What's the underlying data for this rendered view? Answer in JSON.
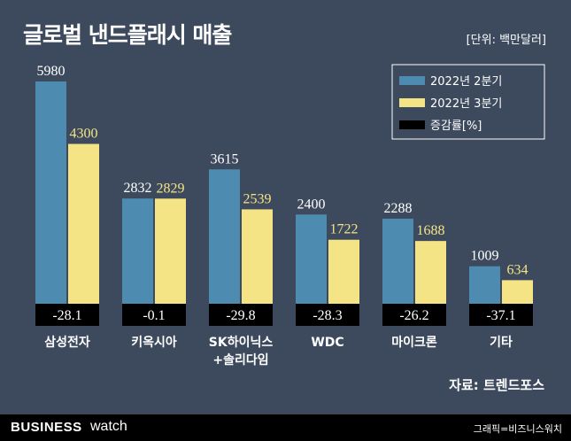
{
  "header": {
    "title": "글로벌 낸드플래시 매출",
    "unit": "[단위: 백만달러]"
  },
  "chart_data": {
    "type": "bar",
    "title": "글로벌 낸드플래시 매출",
    "unit": "[단위: 백만달러]",
    "categories": [
      [
        "삼성전자"
      ],
      [
        "키옥시아"
      ],
      [
        "SK하이닉스",
        "+솔리다임"
      ],
      [
        "WDC"
      ],
      [
        "마이크론"
      ],
      [
        "기타"
      ]
    ],
    "series": [
      {
        "name": "2022년 2분기",
        "values": [
          5980,
          2832,
          3615,
          2400,
          2288,
          1009
        ]
      },
      {
        "name": "2022년 3분기",
        "values": [
          4300,
          2829,
          2539,
          1722,
          1688,
          634
        ]
      }
    ],
    "change": {
      "name": "증감률[%]",
      "labels": [
        "-28.1",
        "-0.1",
        "-29.8",
        "-28.3",
        "-26.2",
        "-37.1"
      ]
    },
    "ylim": [
      0,
      6000
    ],
    "legend": "top-right",
    "colors": {
      "q2": "#4d8bb0",
      "q3": "#f5e485",
      "change": "#000000",
      "q2_label": "#ffffff",
      "q3_label": "#f5e485"
    }
  },
  "source": "자료: 트렌드포스",
  "footer": {
    "brand_bold": "BUSINESS",
    "brand_light": "watch",
    "credit": "그래픽=비즈니스워치"
  }
}
